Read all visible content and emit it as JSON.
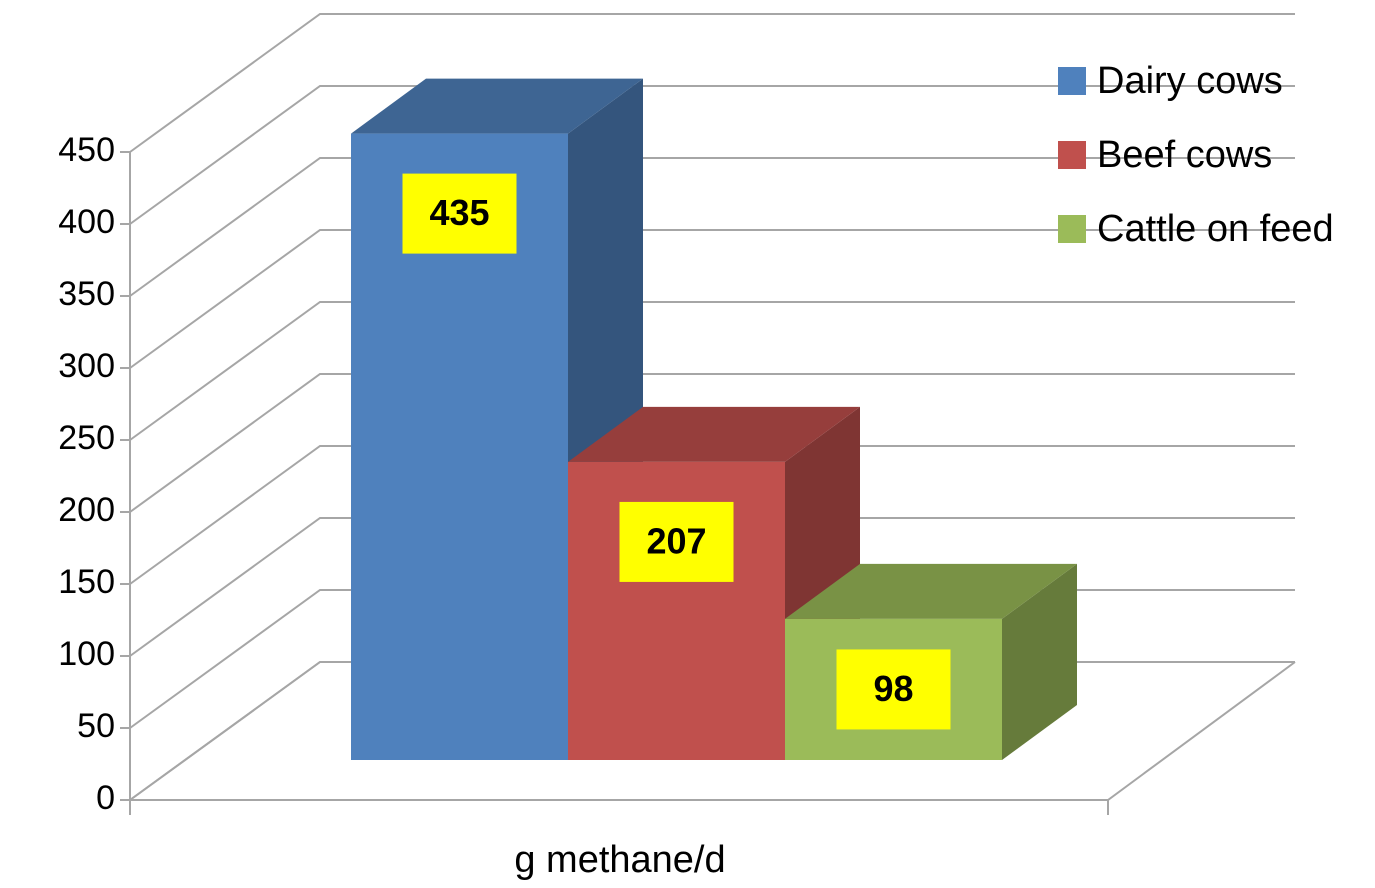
{
  "chart_data": {
    "type": "bar3d",
    "categories": [
      "g methane/d"
    ],
    "series": [
      {
        "name": "Dairy cows",
        "color": "#4f81bd",
        "values": [
          435
        ]
      },
      {
        "name": "Beef cows",
        "color": "#c0504d",
        "values": [
          207
        ]
      },
      {
        "name": "Cattle on feed",
        "color": "#9bbb59",
        "values": [
          98
        ]
      }
    ],
    "ylim": [
      0,
      450
    ],
    "yticks": [
      0,
      50,
      100,
      150,
      200,
      250,
      300,
      350,
      400,
      450
    ],
    "grid": true,
    "legend": "right",
    "label_color": "#ffff00"
  }
}
